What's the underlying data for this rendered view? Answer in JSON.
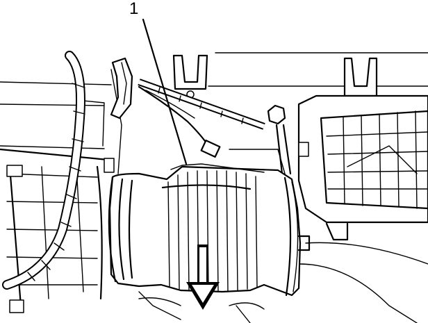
{
  "diagram": {
    "callouts": [
      {
        "label": "1"
      }
    ],
    "icons": {
      "arrow": "down-arrow-icon",
      "hose": "air-intake-duct-icon"
    }
  }
}
